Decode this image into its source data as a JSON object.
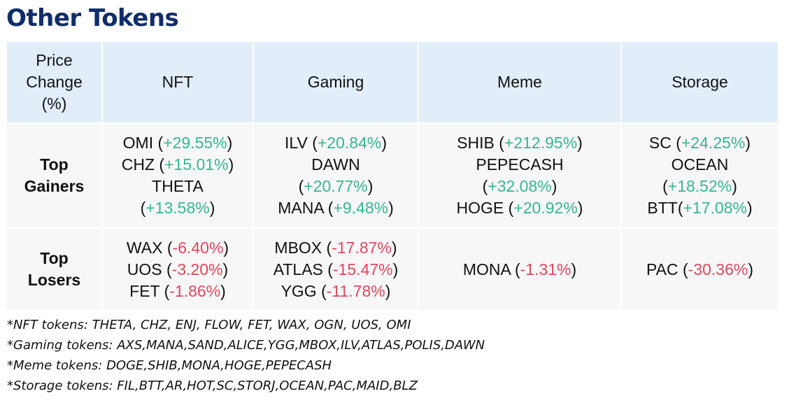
{
  "title": "Other Tokens",
  "table": {
    "header": {
      "row_label_lines": [
        "Price",
        "Change",
        "(%)"
      ],
      "columns": [
        "NFT",
        "Gaming",
        "Meme",
        "Storage"
      ]
    },
    "rows": [
      {
        "label_lines": [
          "Top",
          "Gainers"
        ],
        "cells": [
          [
            {
              "name": "OMI",
              "sep": " (",
              "change": "+29.55%",
              "close": ")"
            },
            {
              "name": "CHZ",
              "sep": " (",
              "change": "+15.01%",
              "close": ")"
            },
            {
              "name": "THETA",
              "sep": "",
              "change": "",
              "close": ""
            },
            {
              "name": "",
              "sep": "(",
              "change": "+13.58%",
              "close": ")"
            }
          ],
          [
            {
              "name": "ILV",
              "sep": " (",
              "change": "+20.84%",
              "close": ")"
            },
            {
              "name": "DAWN",
              "sep": "",
              "change": "",
              "close": ""
            },
            {
              "name": "",
              "sep": "(",
              "change": "+20.77%",
              "close": ")"
            },
            {
              "name": "MANA",
              "sep": " (",
              "change": "+9.48%",
              "close": ")"
            }
          ],
          [
            {
              "name": "SHIB",
              "sep": " (",
              "change": "+212.95%",
              "close": ")"
            },
            {
              "name": "PEPECASH",
              "sep": "",
              "change": "",
              "close": ""
            },
            {
              "name": "",
              "sep": "(",
              "change": "+32.08%",
              "close": ")"
            },
            {
              "name": "HOGE",
              "sep": " (",
              "change": "+20.92%",
              "close": ")"
            }
          ],
          [
            {
              "name": "SC",
              "sep": " (",
              "change": "+24.25%",
              "close": ")"
            },
            {
              "name": "OCEAN",
              "sep": "",
              "change": "",
              "close": ""
            },
            {
              "name": "",
              "sep": "(",
              "change": "+18.52%",
              "close": ")"
            },
            {
              "name": "BTT",
              "sep": "(",
              "change": "+17.08%",
              "close": ")"
            }
          ]
        ]
      },
      {
        "label_lines": [
          "Top",
          "Losers"
        ],
        "cells": [
          [
            {
              "name": "WAX",
              "sep": " (",
              "change": "-6.40%",
              "close": ")"
            },
            {
              "name": "UOS",
              "sep": " (",
              "change": "-3.20%",
              "close": ")"
            },
            {
              "name": "FET",
              "sep": " (",
              "change": "-1.86%",
              "close": ")"
            }
          ],
          [
            {
              "name": "MBOX",
              "sep": " (",
              "change": "-17.87%",
              "close": ")"
            },
            {
              "name": "ATLAS",
              "sep": " (",
              "change": "-15.47%",
              "close": ")"
            },
            {
              "name": "YGG",
              "sep": " (",
              "change": "-11.78%",
              "close": ")"
            }
          ],
          [
            {
              "name": "MONA",
              "sep": " (",
              "change": "-1.31%",
              "close": ")"
            }
          ],
          [
            {
              "name": "PAC",
              "sep": " (",
              "change": "-30.36%",
              "close": ")"
            }
          ]
        ]
      }
    ]
  },
  "notes": [
    "*NFT tokens: THETA, CHZ, ENJ, FLOW, FET, WAX, OGN, UOS, OMI",
    "*Gaming tokens: AXS,MANA,SAND,ALICE,YGG,MBOX,ILV,ATLAS,POLIS,DAWN",
    "*Meme tokens: DOGE,SHIB,MONA,HOGE,PEPECASH",
    "*Storage tokens: FIL,BTT,AR,HOT,SC,STORJ,OCEAN,PAC,MAID,BLZ"
  ],
  "colors": {
    "title": "#0f2d6b",
    "header_bg": "#e1eefa",
    "body_bg": "#f7f7f7",
    "positive": "#37b694",
    "negative": "#e0485f"
  }
}
